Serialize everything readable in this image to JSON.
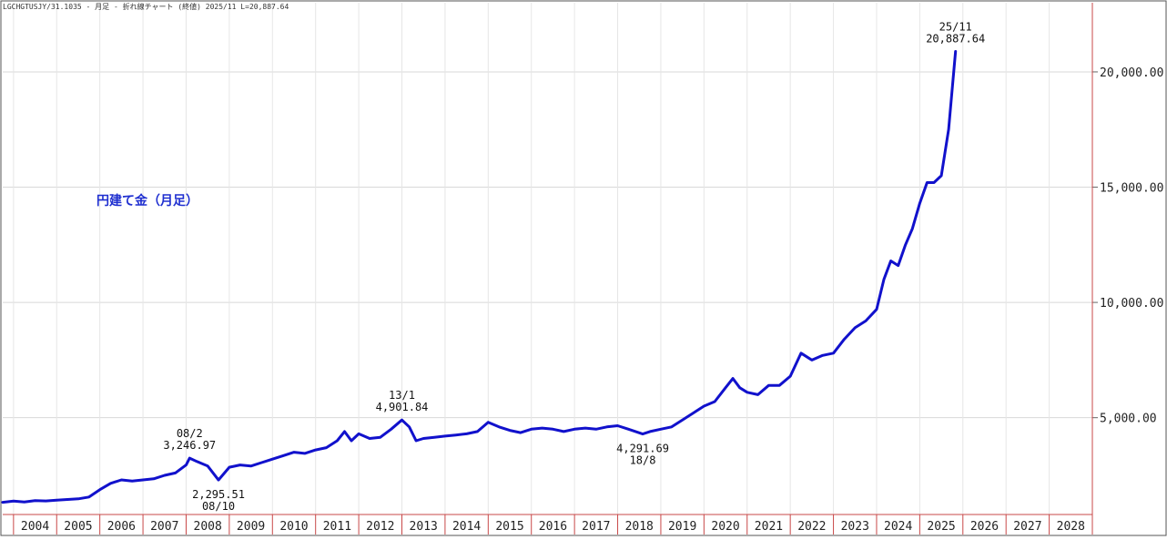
{
  "header": {
    "text": "LGCHGTUSJY/31.1035 - 月足 - 折れ線チャート (終値) 2025/11 L=20,887.64"
  },
  "chart_data": {
    "type": "line",
    "title": "円建て金（月足）",
    "xlabel": "",
    "ylabel": "",
    "ylim": [
      800,
      23000
    ],
    "xlim": [
      2003.75,
      2029.0
    ],
    "y_ticks": [
      5000,
      10000,
      15000,
      20000
    ],
    "y_tick_labels": [
      "5,000.00",
      "10,000.00",
      "15,000.00",
      "20,000.00"
    ],
    "x_tick_labels": [
      "2004",
      "2005",
      "2006",
      "2007",
      "2008",
      "2009",
      "2010",
      "2011",
      "2012",
      "2013",
      "2014",
      "2015",
      "2016",
      "2017",
      "2018",
      "2019",
      "2020",
      "2021",
      "2022",
      "2023",
      "2024",
      "2025",
      "2026",
      "2027",
      "2028"
    ],
    "grid": true,
    "line_color": "#1111cc",
    "annotations": [
      {
        "lines": [
          "08/2",
          "3,246.97"
        ],
        "x": 2008.08,
        "y": 3246.97,
        "pos": "above"
      },
      {
        "lines": [
          "2,295.51",
          "08/10"
        ],
        "x": 2008.75,
        "y": 2295.51,
        "pos": "below"
      },
      {
        "lines": [
          "13/1",
          "4,901.84"
        ],
        "x": 2013.0,
        "y": 4901.84,
        "pos": "above"
      },
      {
        "lines": [
          "4,291.69",
          "18/8"
        ],
        "x": 2018.58,
        "y": 4291.69,
        "pos": "below"
      },
      {
        "lines": [
          "25/11",
          "20,887.64"
        ],
        "x": 2025.83,
        "y": 20887.64,
        "pos": "above"
      }
    ],
    "series": [
      {
        "points": [
          [
            2003.75,
            1330
          ],
          [
            2004.0,
            1380
          ],
          [
            2004.25,
            1340
          ],
          [
            2004.5,
            1400
          ],
          [
            2004.75,
            1390
          ],
          [
            2005.0,
            1420
          ],
          [
            2005.25,
            1450
          ],
          [
            2005.5,
            1480
          ],
          [
            2005.75,
            1560
          ],
          [
            2006.0,
            1880
          ],
          [
            2006.25,
            2150
          ],
          [
            2006.5,
            2300
          ],
          [
            2006.75,
            2250
          ],
          [
            2007.0,
            2300
          ],
          [
            2007.25,
            2350
          ],
          [
            2007.5,
            2500
          ],
          [
            2007.75,
            2600
          ],
          [
            2008.0,
            2950
          ],
          [
            2008.08,
            3246.97
          ],
          [
            2008.25,
            3100
          ],
          [
            2008.5,
            2900
          ],
          [
            2008.75,
            2295.51
          ],
          [
            2009.0,
            2850
          ],
          [
            2009.25,
            2950
          ],
          [
            2009.5,
            2900
          ],
          [
            2009.75,
            3050
          ],
          [
            2010.0,
            3200
          ],
          [
            2010.25,
            3350
          ],
          [
            2010.5,
            3500
          ],
          [
            2010.75,
            3450
          ],
          [
            2011.0,
            3600
          ],
          [
            2011.25,
            3700
          ],
          [
            2011.5,
            4000
          ],
          [
            2011.67,
            4400
          ],
          [
            2011.83,
            4000
          ],
          [
            2012.0,
            4300
          ],
          [
            2012.25,
            4100
          ],
          [
            2012.5,
            4150
          ],
          [
            2012.75,
            4500
          ],
          [
            2013.0,
            4901.84
          ],
          [
            2013.17,
            4600
          ],
          [
            2013.33,
            4000
          ],
          [
            2013.5,
            4100
          ],
          [
            2013.75,
            4150
          ],
          [
            2014.0,
            4200
          ],
          [
            2014.25,
            4250
          ],
          [
            2014.5,
            4300
          ],
          [
            2014.75,
            4400
          ],
          [
            2015.0,
            4800
          ],
          [
            2015.25,
            4600
          ],
          [
            2015.5,
            4450
          ],
          [
            2015.75,
            4350
          ],
          [
            2016.0,
            4500
          ],
          [
            2016.25,
            4550
          ],
          [
            2016.5,
            4500
          ],
          [
            2016.75,
            4400
          ],
          [
            2017.0,
            4500
          ],
          [
            2017.25,
            4550
          ],
          [
            2017.5,
            4500
          ],
          [
            2017.75,
            4600
          ],
          [
            2018.0,
            4650
          ],
          [
            2018.25,
            4500
          ],
          [
            2018.58,
            4291.69
          ],
          [
            2018.75,
            4400
          ],
          [
            2019.0,
            4500
          ],
          [
            2019.25,
            4600
          ],
          [
            2019.5,
            4900
          ],
          [
            2019.75,
            5200
          ],
          [
            2020.0,
            5500
          ],
          [
            2020.25,
            5700
          ],
          [
            2020.5,
            6300
          ],
          [
            2020.67,
            6700
          ],
          [
            2020.83,
            6300
          ],
          [
            2021.0,
            6100
          ],
          [
            2021.25,
            6000
          ],
          [
            2021.5,
            6400
          ],
          [
            2021.75,
            6400
          ],
          [
            2022.0,
            6800
          ],
          [
            2022.25,
            7800
          ],
          [
            2022.5,
            7500
          ],
          [
            2022.75,
            7700
          ],
          [
            2023.0,
            7800
          ],
          [
            2023.25,
            8400
          ],
          [
            2023.5,
            8900
          ],
          [
            2023.75,
            9200
          ],
          [
            2024.0,
            9700
          ],
          [
            2024.17,
            11000
          ],
          [
            2024.33,
            11800
          ],
          [
            2024.5,
            11600
          ],
          [
            2024.67,
            12500
          ],
          [
            2024.83,
            13200
          ],
          [
            2025.0,
            14300
          ],
          [
            2025.17,
            15200
          ],
          [
            2025.33,
            15200
          ],
          [
            2025.5,
            15500
          ],
          [
            2025.67,
            17500
          ],
          [
            2025.83,
            20887.64
          ]
        ]
      }
    ]
  }
}
